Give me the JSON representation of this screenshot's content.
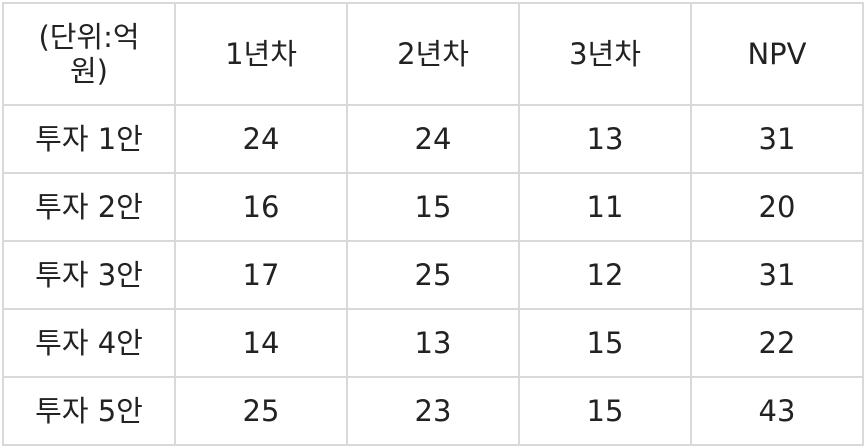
{
  "table": {
    "corner_line1": "(단위:억",
    "corner_line2": "원)",
    "headers": [
      "1년차",
      "2년차",
      "3년차",
      "NPV"
    ],
    "rows": [
      {
        "label": "투자 1안",
        "values": [
          "24",
          "24",
          "13",
          "31"
        ]
      },
      {
        "label": "투자 2안",
        "values": [
          "16",
          "15",
          "11",
          "20"
        ]
      },
      {
        "label": "투자 3안",
        "values": [
          "17",
          "25",
          "12",
          "31"
        ]
      },
      {
        "label": "투자 4안",
        "values": [
          "14",
          "13",
          "15",
          "22"
        ]
      },
      {
        "label": "투자 5안",
        "values": [
          "25",
          "23",
          "15",
          "43"
        ]
      }
    ]
  }
}
